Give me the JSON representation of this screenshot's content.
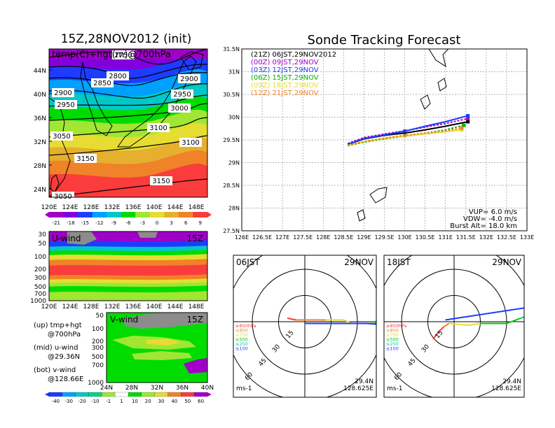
{
  "left": {
    "title": "15Z,28NOV2012 (init)",
    "map": {
      "label": "temp(C)+hgt(m)@700hPa",
      "lat_labels": [
        "44N",
        "40N",
        "36N",
        "32N",
        "28N",
        "24N"
      ],
      "lon_labels": [
        "120E",
        "124E",
        "128E",
        "132E",
        "136E",
        "140E",
        "144E",
        "148E"
      ],
      "contour_labels": [
        "2750",
        "2800",
        "2850",
        "2900",
        "2900",
        "2950",
        "2950",
        "3000",
        "3050",
        "3100",
        "3100",
        "3150",
        "3150",
        "3050"
      ],
      "colorbar_labels": [
        "-21",
        "-18",
        "-15",
        "-12",
        "-9",
        "-6",
        "-3",
        "0",
        "3",
        "6",
        "9"
      ],
      "colorbar_colors": [
        "#a000c8",
        "#8200dc",
        "#1e3cff",
        "#00a0ff",
        "#00c8c8",
        "#00dc00",
        "#a0e632",
        "#e6dc32",
        "#e6af2d",
        "#f08228",
        "#fa3c3c"
      ]
    },
    "uwind": {
      "label": "U-wind",
      "time": "15Z",
      "p_labels": [
        "30",
        "50",
        "100",
        "200",
        "300",
        "500",
        "700",
        "1000"
      ],
      "lon_labels": [
        "120E",
        "124E",
        "128E",
        "132E",
        "136E",
        "140E",
        "144E",
        "148E"
      ]
    },
    "vwind": {
      "label": "V-wind",
      "time": "15Z",
      "p_labels": [
        "50",
        "100",
        "200",
        "300",
        "500",
        "700",
        "1000"
      ],
      "lat_labels": [
        "24N",
        "28N",
        "32N",
        "36N",
        "40N"
      ],
      "colorbar_labels": [
        "-40",
        "-30",
        "-20",
        "-10",
        "-1",
        "1",
        "10",
        "20",
        "30",
        "40",
        "50",
        "60"
      ],
      "colorbar_colors": [
        "#1e3cff",
        "#00a0ff",
        "#00c8c8",
        "#00d28c",
        "#a0e632",
        "#ffffff",
        "#00dc00",
        "#a0e632",
        "#e6dc32",
        "#f08228",
        "#fa3c3c",
        "#a000c8"
      ]
    },
    "notes": [
      {
        "head": "(up) tmp+hgt",
        "sub": "@700hPa"
      },
      {
        "head": "(mid) u-wind",
        "sub": "@29.36N"
      },
      {
        "head": "(bot) v-wind",
        "sub": "@128.66E"
      }
    ]
  },
  "right": {
    "title": "Sonde Tracking Forecast",
    "track": {
      "lat_labels": [
        "31.5N",
        "31N",
        "30.5N",
        "30N",
        "29.5N",
        "29N",
        "28.5N",
        "28N",
        "27.5N"
      ],
      "lon_labels": [
        "126E",
        "126.5E",
        "127E",
        "127.5E",
        "128E",
        "128.5E",
        "129E",
        "129.5E",
        "130E",
        "130.5E",
        "131E",
        "131.5E",
        "132E",
        "132.5E",
        "133E"
      ],
      "legend": [
        {
          "text": "(21Z) 06JST,29NOV2012",
          "color": "#000000"
        },
        {
          "text": "(00Z) 09JST,29NOV",
          "color": "#a000c8"
        },
        {
          "text": "(03Z) 12JST,29NOV",
          "color": "#1e3cff"
        },
        {
          "text": "(06Z) 15JST,29NOV",
          "color": "#00b400"
        },
        {
          "text": "(09Z) 18JST,29NOV",
          "color": "#e6dc32"
        },
        {
          "text": "(12Z) 21JST,29NOV",
          "color": "#f08228"
        }
      ],
      "params": [
        "VUP= 6.0 m/s",
        "VDW= -4.0 m/s",
        "Burst Alt= 18.0 km"
      ]
    },
    "hodos": [
      {
        "time": "06JST",
        "date": "29NOV",
        "lat": "29.4N",
        "lon": "128.625E",
        "unit": "ms-1",
        "ring_labels": [
          "15",
          "30",
          "45",
          "60"
        ],
        "levels": [
          {
            "t": "≥850hPa",
            "c": "#fa3c3c"
          },
          {
            "t": "≤850",
            "c": "#f08228"
          },
          {
            "t": "≤700",
            "c": "#e6dc32"
          },
          {
            "t": "≤500",
            "c": "#00c800"
          },
          {
            "t": "≤250",
            "c": "#00c8c8"
          },
          {
            "t": "≤100",
            "c": "#1e3cff"
          }
        ]
      },
      {
        "time": "18JST",
        "date": "29NOV",
        "lat": "29.4N",
        "lon": "128.625E",
        "unit": "ms-1",
        "ring_labels": [
          "15",
          "30",
          "45",
          "60"
        ],
        "levels": [
          {
            "t": "≥850hPa",
            "c": "#fa3c3c"
          },
          {
            "t": "≤850",
            "c": "#f08228"
          },
          {
            "t": "≤700",
            "c": "#e6dc32"
          },
          {
            "t": "≤500",
            "c": "#00c800"
          },
          {
            "t": "≤250",
            "c": "#00c8c8"
          },
          {
            "t": "≤100",
            "c": "#1e3cff"
          }
        ]
      }
    ]
  },
  "chart_data": [
    {
      "type": "line",
      "title": "Sonde Tracking Forecast",
      "xlabel": "",
      "ylabel": "",
      "xlim": [
        126,
        133
      ],
      "ylim": [
        27.5,
        31.5
      ],
      "series": [
        {
          "name": "(21Z) 06JST,29NOV2012",
          "x": [
            128.6,
            129.0,
            129.5,
            130.0,
            130.5,
            131.0,
            131.55
          ],
          "y": [
            29.4,
            29.52,
            29.6,
            29.65,
            29.72,
            29.8,
            29.9
          ]
        },
        {
          "name": "(00Z) 09JST,29NOV",
          "x": [
            128.6,
            129.0,
            129.5,
            130.0,
            130.5,
            131.0,
            131.55
          ],
          "y": [
            29.42,
            29.55,
            29.63,
            29.7,
            29.78,
            29.86,
            29.97
          ]
        },
        {
          "name": "(03Z) 12JST,29NOV",
          "x": [
            128.6,
            129.0,
            129.5,
            130.0,
            130.5,
            131.0,
            131.55
          ],
          "y": [
            29.4,
            29.53,
            29.61,
            29.69,
            29.8,
            29.9,
            30.03
          ]
        },
        {
          "name": "(06Z) 15JST,29NOV",
          "x": [
            128.6,
            129.0,
            129.5,
            130.0,
            130.5,
            131.0,
            131.45
          ],
          "y": [
            29.37,
            29.45,
            29.52,
            29.58,
            29.65,
            29.72,
            29.82
          ]
        },
        {
          "name": "(09Z) 18JST,29NOV",
          "x": [
            128.6,
            129.0,
            129.5,
            130.0,
            130.5,
            131.0,
            131.4
          ],
          "y": [
            29.38,
            29.46,
            29.53,
            29.58,
            29.63,
            29.68,
            29.72
          ]
        },
        {
          "name": "(12Z) 21JST,29NOV",
          "x": [
            128.6,
            129.0,
            129.5,
            130.0,
            130.5,
            131.0,
            131.4
          ],
          "y": [
            29.38,
            29.46,
            29.54,
            29.6,
            29.65,
            29.7,
            29.76
          ]
        }
      ]
    },
    {
      "type": "line",
      "title": "06JST",
      "xlim": [
        -60,
        60
      ],
      "ylim": [
        -60,
        60
      ],
      "series": [
        {
          "name": "≥850hPa",
          "u": [
            -10,
            -5
          ],
          "v": [
            2,
            1
          ]
        },
        {
          "name": "≤850",
          "u": [
            -5,
            5,
            12
          ],
          "v": [
            1,
            1,
            1
          ]
        },
        {
          "name": "≤700",
          "u": [
            12,
            22,
            27
          ],
          "v": [
            1,
            1,
            -1
          ]
        },
        {
          "name": "≤500",
          "u": [
            27,
            40,
            47
          ],
          "v": [
            -1,
            -1,
            12
          ]
        },
        {
          "name": "≤250",
          "u": [
            47,
            55,
            50
          ],
          "v": [
            12,
            8,
            -2
          ]
        },
        {
          "name": "≤100",
          "u": [
            50,
            35,
            0
          ],
          "v": [
            -2,
            -1,
            -1
          ]
        }
      ]
    },
    {
      "type": "line",
      "title": "18JST",
      "xlim": [
        -60,
        60
      ],
      "ylim": [
        -60,
        60
      ],
      "series": [
        {
          "name": "≥850hPa",
          "u": [
            -12,
            -9,
            -6
          ],
          "v": [
            -10,
            -6,
            -3
          ]
        },
        {
          "name": "≤850",
          "u": [
            -6,
            -3
          ],
          "v": [
            -3,
            -1
          ]
        },
        {
          "name": "≤700",
          "u": [
            -3,
            8,
            15
          ],
          "v": [
            -1,
            -2,
            -1
          ]
        },
        {
          "name": "≤500",
          "u": [
            15,
            30,
            38
          ],
          "v": [
            -1,
            -1,
            2
          ]
        },
        {
          "name": "≤250",
          "u": [
            38,
            50
          ],
          "v": [
            2,
            6
          ]
        },
        {
          "name": "≤100",
          "u": [
            50,
            54,
            -5
          ],
          "v": [
            6,
            10,
            1
          ]
        }
      ]
    }
  ]
}
